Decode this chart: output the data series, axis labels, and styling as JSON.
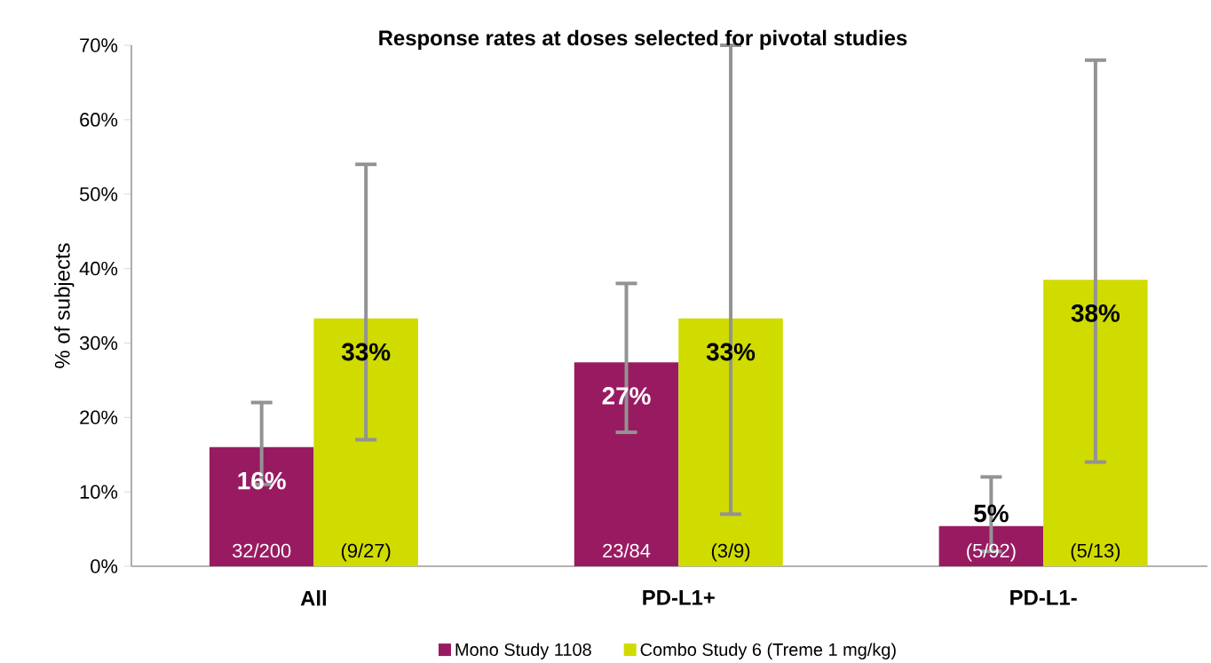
{
  "chart_data": {
    "type": "bar",
    "title": "Response rates at doses selected for pivotal studies",
    "ylabel": "% of subjects",
    "categories": [
      "All",
      "PD-L1+",
      "PD-L1-"
    ],
    "series": [
      {
        "name": "Mono Study 1108",
        "color": "#981b62",
        "values": [
          16,
          27.4,
          5.4
        ],
        "errors": [
          [
            11,
            22
          ],
          [
            18,
            38
          ],
          [
            2,
            12
          ]
        ],
        "value_labels": [
          "16%",
          "27%",
          "5%"
        ]
      },
      {
        "name": "Combo Study 6 (Treme 1 mg/kg)",
        "color": "#d0db00",
        "values": [
          33.3,
          33.3,
          38.5
        ],
        "errors": [
          [
            17,
            54
          ],
          [
            7,
            70
          ],
          [
            14,
            68
          ]
        ],
        "value_labels": [
          "33%",
          "33%",
          "38%"
        ]
      }
    ],
    "annotations": [
      {
        "text": "32/200",
        "x": "All",
        "y": 0
      },
      {
        "text": "(9/27)",
        "x": "All",
        "y": 0
      },
      {
        "text": "23/84",
        "x": "PD-L1+",
        "y": 0
      },
      {
        "text": "(3/9)",
        "x": "PD-L1+",
        "y": 0
      },
      {
        "text": "(5/92)",
        "x": "PD-L1-",
        "y": 0
      },
      {
        "text": "(5/13)",
        "x": "PD-L1-",
        "y": 0
      }
    ],
    "ylim": [
      0,
      70
    ],
    "yticks": [
      {
        "value": 0,
        "label": "0%"
      },
      {
        "value": 10,
        "label": "10%"
      },
      {
        "value": 20,
        "label": "20%"
      },
      {
        "value": 30,
        "label": "30%"
      },
      {
        "value": 40,
        "label": "40%"
      },
      {
        "value": 50,
        "label": "50%"
      },
      {
        "value": 60,
        "label": "60%"
      },
      {
        "value": 70,
        "label": "70%"
      }
    ],
    "grid": false,
    "legend": "bottom"
  }
}
